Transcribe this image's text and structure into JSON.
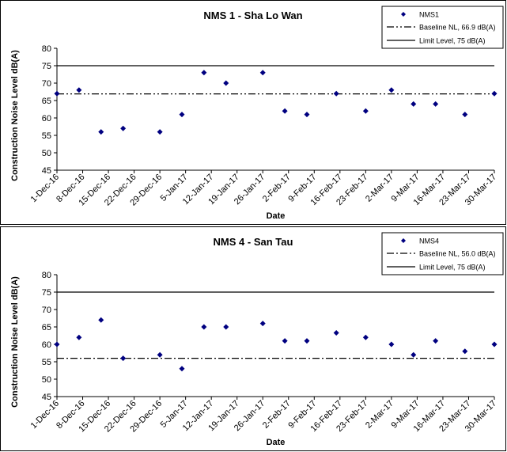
{
  "chart_data": [
    {
      "type": "scatter",
      "title": "NMS 1 - Sha Lo Wan",
      "xlabel": "Date",
      "ylabel": "Construction Noise Level  dB(A)",
      "ylim": [
        45,
        80
      ],
      "yticks": [
        45,
        50,
        55,
        60,
        65,
        70,
        75,
        80
      ],
      "xlim": [
        "2016-12-01",
        "2017-03-30"
      ],
      "xtick_labels": [
        "1-Dec-16",
        "8-Dec-16",
        "15-Dec-16",
        "22-Dec-16",
        "29-Dec-16",
        "5-Jan-17",
        "12-Jan-17",
        "19-Jan-17",
        "26-Jan-17",
        "2-Feb-17",
        "9-Feb-17",
        "16-Feb-17",
        "23-Feb-17",
        "2-Mar-17",
        "9-Mar-17",
        "16-Mar-17",
        "23-Mar-17",
        "30-Mar-17"
      ],
      "legend_position": "top-right",
      "series": [
        {
          "name": "NMS1",
          "marker": "diamond",
          "color": "#000080",
          "x": [
            "2016-12-01",
            "2016-12-07",
            "2016-12-13",
            "2016-12-19",
            "2016-12-29",
            "2017-01-04",
            "2017-01-10",
            "2017-01-16",
            "2017-01-26",
            "2017-02-01",
            "2017-02-07",
            "2017-02-15",
            "2017-02-23",
            "2017-03-02",
            "2017-03-08",
            "2017-03-14",
            "2017-03-22",
            "2017-03-30"
          ],
          "y": [
            67,
            68,
            56,
            57,
            56,
            61,
            73,
            70,
            73,
            62,
            61,
            67,
            62,
            68,
            64,
            64,
            61,
            67
          ]
        }
      ],
      "reference_lines": [
        {
          "name": "Baseline NL, 66.9 dB(A)",
          "y": 66.9,
          "style": "dash-dot-dot"
        },
        {
          "name": "Limit Level, 75 dB(A)",
          "y": 75,
          "style": "solid"
        }
      ]
    },
    {
      "type": "scatter",
      "title": "NMS 4 - San Tau",
      "xlabel": "Date",
      "ylabel": "Construction Noise Level  dB(A)",
      "ylim": [
        45,
        80
      ],
      "yticks": [
        45,
        50,
        55,
        60,
        65,
        70,
        75,
        80
      ],
      "xlim": [
        "2016-12-01",
        "2017-03-30"
      ],
      "xtick_labels": [
        "1-Dec-16",
        "8-Dec-16",
        "15-Dec-16",
        "22-Dec-16",
        "29-Dec-16",
        "5-Jan-17",
        "12-Jan-17",
        "19-Jan-17",
        "26-Jan-17",
        "2-Feb-17",
        "9-Feb-17",
        "16-Feb-17",
        "23-Feb-17",
        "2-Mar-17",
        "9-Mar-17",
        "16-Mar-17",
        "23-Mar-17",
        "30-Mar-17"
      ],
      "legend_position": "top-right",
      "series": [
        {
          "name": "NMS4",
          "marker": "diamond",
          "color": "#000080",
          "x": [
            "2016-12-01",
            "2016-12-07",
            "2016-12-13",
            "2016-12-19",
            "2016-12-29",
            "2017-01-04",
            "2017-01-10",
            "2017-01-16",
            "2017-01-26",
            "2017-02-01",
            "2017-02-07",
            "2017-02-15",
            "2017-02-23",
            "2017-03-02",
            "2017-03-08",
            "2017-03-14",
            "2017-03-22",
            "2017-03-30"
          ],
          "y": [
            60,
            62,
            67,
            56,
            57,
            53,
            65,
            65,
            66,
            61,
            61,
            63.3,
            62,
            60,
            57,
            61,
            58,
            60
          ]
        }
      ],
      "reference_lines": [
        {
          "name": "Baseline NL, 56.0 dB(A)",
          "y": 56.0,
          "style": "dash-dot"
        },
        {
          "name": "Limit Level, 75 dB(A)",
          "y": 75,
          "style": "solid"
        }
      ]
    }
  ]
}
